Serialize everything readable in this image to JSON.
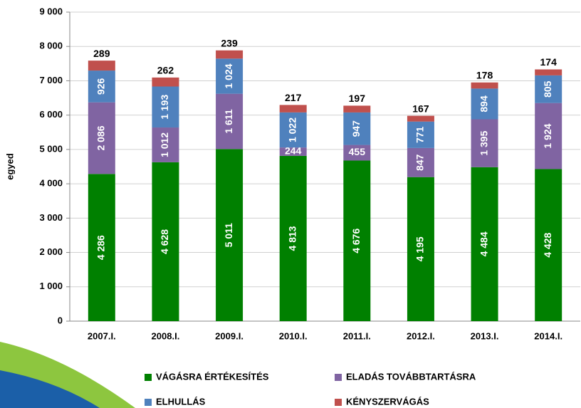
{
  "chart_data": {
    "type": "stacked_bar",
    "y_label": "egyed",
    "categories": [
      "2007.I.",
      "2008.I.",
      "2009.I.",
      "2010.I.",
      "2011.I.",
      "2012.I.",
      "2013.I.",
      "2014.I."
    ],
    "series": [
      {
        "name": "VÁGÁSRA ÉRTÉKESÍTÉS",
        "color": "#008000",
        "values": [
          4286,
          4628,
          5011,
          4813,
          4676,
          4195,
          4484,
          4428
        ],
        "value_labels": [
          "4 286",
          "4 628",
          "5 011",
          "4 813",
          "4 676",
          "4 195",
          "4 484",
          "4 428"
        ]
      },
      {
        "name": "ELADÁS TOVÁBBTARTÁSRA",
        "color": "#8064a2",
        "values": [
          2086,
          1012,
          1611,
          244,
          455,
          847,
          1395,
          1924
        ],
        "value_labels": [
          "2 086",
          "1 012",
          "1 611",
          "244",
          "455",
          "847",
          "1 395",
          "1 924"
        ]
      },
      {
        "name": "ELHULLÁS",
        "color": "#4f81bd",
        "values": [
          926,
          1193,
          1024,
          1022,
          947,
          771,
          894,
          805
        ],
        "value_labels": [
          "926",
          "1 193",
          "1 024",
          "1 022",
          "947",
          "771",
          "894",
          "805"
        ]
      },
      {
        "name": "KÉNYSZERVÁGÁS",
        "color": "#c0504d",
        "values": [
          289,
          262,
          239,
          217,
          197,
          167,
          178,
          174
        ],
        "value_labels": [
          "289",
          "262",
          "239",
          "217",
          "197",
          "167",
          "178",
          "174"
        ]
      }
    ],
    "ylim": [
      0,
      9000
    ],
    "yticks": [
      0,
      {
        "value": 1000,
        "label": "1 000"
      },
      {
        "value": 2000,
        "label": "2 000"
      },
      {
        "value": 3000,
        "label": "3 000"
      },
      {
        "value": 4000,
        "label": "4 000"
      },
      {
        "value": 5000,
        "label": "5 000"
      },
      {
        "value": 6000,
        "label": "6 000"
      },
      {
        "value": 7000,
        "label": "7 000"
      },
      {
        "value": 8000,
        "label": "8 000"
      },
      {
        "value": 9000,
        "label": "9 000"
      }
    ],
    "grid": true
  }
}
